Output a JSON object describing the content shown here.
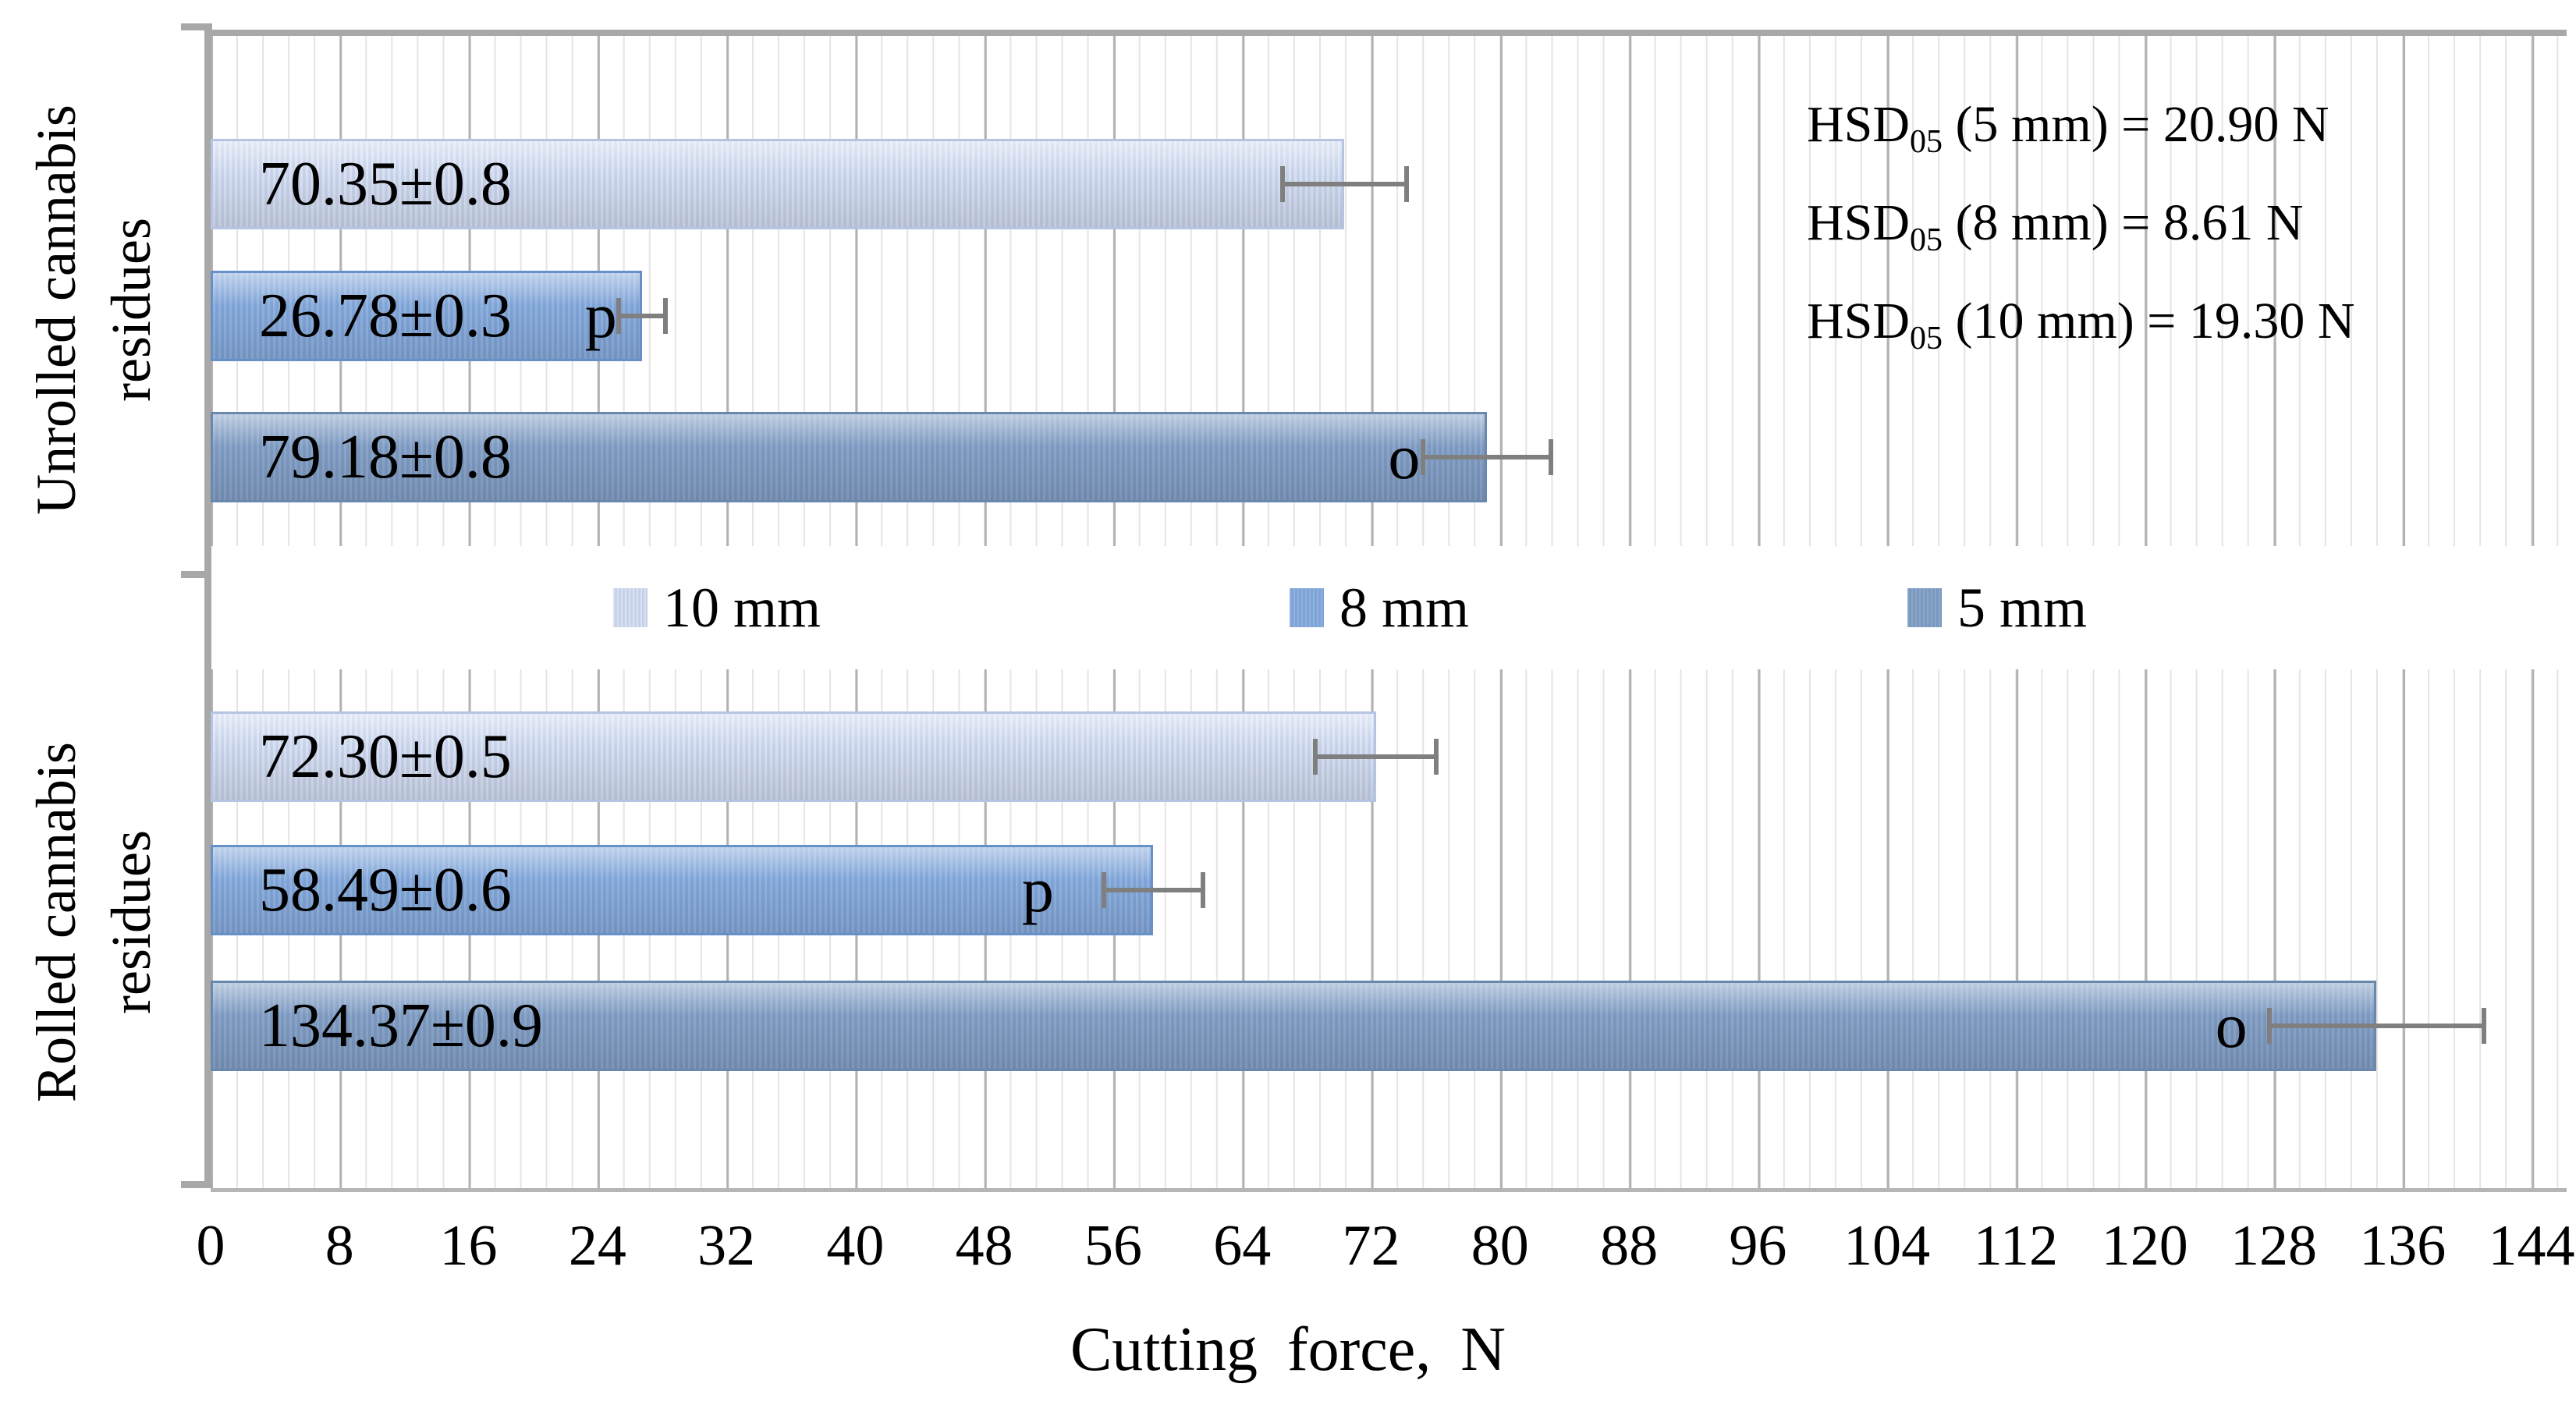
{
  "chart_data": {
    "type": "bar",
    "orientation": "horizontal",
    "xlabel": "Cutting force, N",
    "x_axis": {
      "min": 0,
      "max": 144,
      "major_tick": 8,
      "minor_tick": 1.6,
      "ticks": [
        0,
        8,
        16,
        24,
        32,
        40,
        48,
        56,
        64,
        72,
        80,
        88,
        96,
        104,
        112,
        120,
        128,
        136,
        144
      ]
    },
    "grid": "vertical, minor and major",
    "categories": [
      "Unrolled cannabis residues",
      "Rolled cannabis residues"
    ],
    "category_label_lines": [
      [
        "Unrolled cannabis",
        "residues"
      ],
      [
        "Rolled cannabis",
        "residues"
      ]
    ],
    "legend": {
      "position": "center-band",
      "entries": [
        "10 mm",
        "8 mm",
        "5 mm"
      ]
    },
    "series": [
      {
        "name": "10 mm",
        "color_base": "#c6d2ea",
        "color_stripe": "#d9e1f2",
        "color_border": "#b4c4e2",
        "points": [
          {
            "category": "Unrolled cannabis residues",
            "value": 70.35,
            "label": "70.35±0.8",
            "letter": "",
            "error_est": 4.0
          },
          {
            "category": "Rolled cannabis residues",
            "value": 72.3,
            "label": "72.30±0.5",
            "letter": "",
            "error_est": 3.9
          }
        ]
      },
      {
        "name": "8 mm",
        "color_base": "#7ea3d6",
        "color_stripe": "#91b1de",
        "color_border": "#6590c8",
        "points": [
          {
            "category": "Unrolled cannabis residues",
            "value": 26.78,
            "label": "26.78±0.3",
            "letter": "p",
            "error_est": 1.6
          },
          {
            "category": "Rolled cannabis residues",
            "value": 58.49,
            "label": "58.49±0.6",
            "letter": "p",
            "error_est": 3.2
          }
        ]
      },
      {
        "name": "5 mm",
        "color_base": "#7b98c0",
        "color_stripe": "#8ca6c9",
        "color_border": "#6a88ae",
        "points": [
          {
            "category": "Unrolled cannabis residues",
            "value": 79.18,
            "label": "79.18±0.8",
            "letter": "o",
            "error_est": 4.1
          },
          {
            "category": "Rolled cannabis residues",
            "value": 134.37,
            "label": "134.37±0.9",
            "letter": "o",
            "error_est": 6.8
          }
        ]
      }
    ],
    "annotations": [
      {
        "base": "HSD",
        "sub": "05",
        "rest": " (5 mm) = 20.90 N"
      },
      {
        "base": "HSD",
        "sub": "05",
        "rest": " (8 mm) = 8.61 N"
      },
      {
        "base": "HSD",
        "sub": "05",
        "rest": " (10 mm) = 19.30 N"
      }
    ],
    "colors": {
      "gridline_major": "#b2b2b2",
      "gridline_minor": "#e4e4e4",
      "axis": "#a8a8a8",
      "error_bar": "#7f7f7f",
      "text": "#000000"
    }
  }
}
